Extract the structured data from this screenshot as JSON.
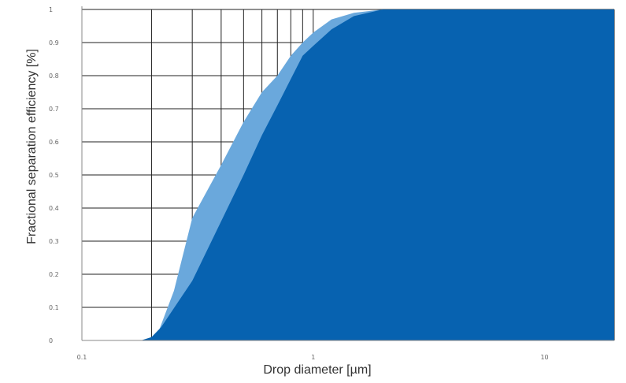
{
  "chart_data": {
    "type": "area",
    "title": "",
    "xlabel": "Drop diameter [µm]",
    "ylabel": "Fractional separation efficiency [%]",
    "x_scale": "log",
    "xlim": [
      0.1,
      20
    ],
    "ylim": [
      0,
      1
    ],
    "grid": true,
    "x_tick_labels": [
      {
        "value": 0.1,
        "label": "0.1"
      },
      {
        "value": 1,
        "label": "1"
      },
      {
        "value": 10,
        "label": "10"
      }
    ],
    "y_tick_labels": [
      {
        "value": 0,
        "label": "0"
      },
      {
        "value": 0.1,
        "label": "0.1"
      },
      {
        "value": 0.2,
        "label": "0.2"
      },
      {
        "value": 0.3,
        "label": "0.3"
      },
      {
        "value": 0.4,
        "label": "0.4"
      },
      {
        "value": 0.5,
        "label": "0.5"
      },
      {
        "value": 0.6,
        "label": "0.6"
      },
      {
        "value": 0.7,
        "label": "0.7"
      },
      {
        "value": 0.8,
        "label": "0.8"
      },
      {
        "value": 0.9,
        "label": "0.9"
      },
      {
        "value": 1,
        "label": "1"
      }
    ],
    "series": [
      {
        "color": "#6aa8dc",
        "x": [
          0.1,
          0.18,
          0.21,
          0.25,
          0.3,
          0.4,
          0.5,
          0.6,
          0.7,
          0.8,
          0.9,
          1.0,
          1.2,
          1.5,
          2.0,
          20
        ],
        "values": [
          0,
          0,
          0.01,
          0.15,
          0.37,
          0.53,
          0.66,
          0.75,
          0.8,
          0.86,
          0.9,
          0.93,
          0.97,
          0.99,
          1.0,
          1.0
        ]
      },
      {
        "color": "#0762b0",
        "x": [
          0.1,
          0.18,
          0.2,
          0.22,
          0.3,
          0.4,
          0.5,
          0.6,
          0.7,
          0.8,
          0.9,
          1.0,
          1.2,
          1.5,
          2.0,
          20
        ],
        "values": [
          0,
          0,
          0.01,
          0.04,
          0.18,
          0.36,
          0.5,
          0.62,
          0.71,
          0.79,
          0.86,
          0.89,
          0.94,
          0.98,
          1.0,
          1.0
        ]
      }
    ]
  }
}
